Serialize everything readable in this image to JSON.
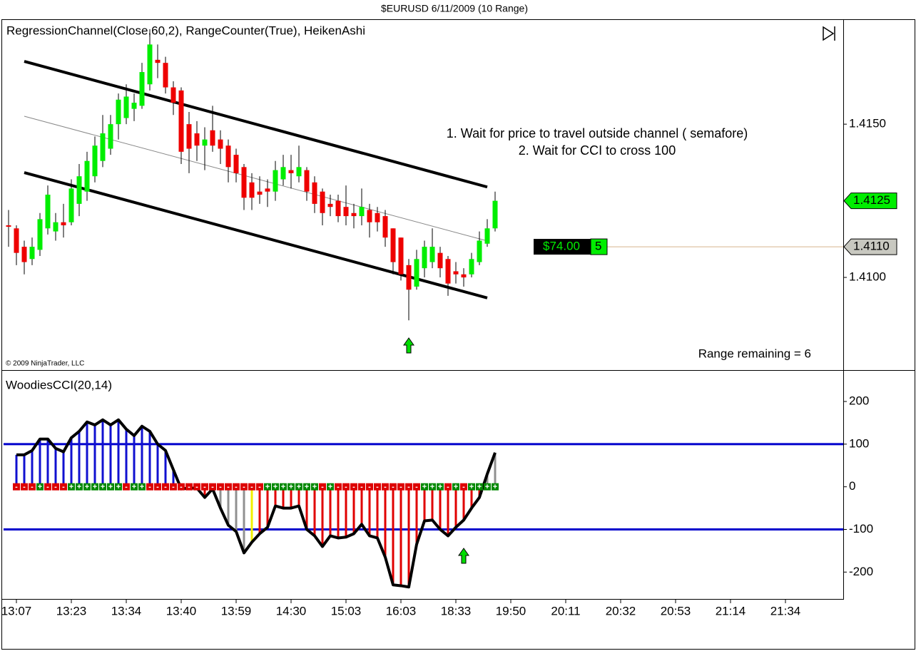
{
  "window_title": "$EURUSD  6/11/2009 (10 Range)",
  "chart_data": [
    {
      "type": "candlestick",
      "title": "RegressionChannel(Close,60,2), RangeCounter(True), HeikenAshi",
      "open": [
        1.4117,
        1.4116,
        1.411,
        1.4106,
        1.4109,
        1.4116,
        1.4115,
        1.4118,
        1.4118,
        1.4124,
        1.4128,
        1.4133,
        1.4138,
        1.4142,
        1.415,
        1.4152,
        1.4155,
        1.4156,
        1.4163,
        1.4171,
        1.417,
        1.4162,
        1.4161,
        1.415,
        1.4147,
        1.4143,
        1.4148,
        1.4145,
        1.4143,
        1.414,
        1.4136,
        1.4131,
        1.4128,
        1.4129,
        1.4128,
        1.4132,
        1.4135,
        1.4133,
        1.4135,
        1.4131,
        1.4128,
        1.4124,
        1.4125,
        1.4123,
        1.4121,
        1.412,
        1.4122,
        1.4121,
        1.412,
        1.4116,
        1.4113,
        1.4104,
        1.4097,
        1.4103,
        1.4105,
        1.4108,
        1.4106,
        1.4102,
        1.4101,
        1.4101,
        1.4105,
        1.4111,
        1.4116
      ],
      "high": [
        1.4122,
        1.4117,
        1.4112,
        1.4113,
        1.4121,
        1.413,
        1.4121,
        1.4124,
        1.4132,
        1.4137,
        1.4141,
        1.4146,
        1.4153,
        1.4153,
        1.416,
        1.4163,
        1.416,
        1.417,
        1.4181,
        1.4176,
        1.4172,
        1.4164,
        1.4162,
        1.4154,
        1.4151,
        1.4149,
        1.4156,
        1.4148,
        1.4145,
        1.4142,
        1.4137,
        1.4134,
        1.4133,
        1.4132,
        1.4138,
        1.414,
        1.414,
        1.4143,
        1.4136,
        1.4133,
        1.4129,
        1.4127,
        1.4127,
        1.413,
        1.4124,
        1.4129,
        1.4124,
        1.4123,
        1.4122,
        1.4116,
        1.4113,
        1.4106,
        1.4109,
        1.4112,
        1.4116,
        1.411,
        1.4107,
        1.4105,
        1.4103,
        1.4108,
        1.4115,
        1.4119,
        1.4128
      ],
      "low": [
        1.411,
        1.4104,
        1.4101,
        1.4104,
        1.4107,
        1.4114,
        1.4112,
        1.4113,
        1.4117,
        1.412,
        1.4125,
        1.4131,
        1.4136,
        1.414,
        1.4145,
        1.415,
        1.4151,
        1.4155,
        1.4161,
        1.4165,
        1.416,
        1.4153,
        1.4137,
        1.4134,
        1.4138,
        1.4135,
        1.4141,
        1.4137,
        1.4131,
        1.4131,
        1.4122,
        1.4122,
        1.4124,
        1.4123,
        1.4125,
        1.413,
        1.4129,
        1.4131,
        1.4125,
        1.4121,
        1.4117,
        1.412,
        1.4118,
        1.4117,
        1.4116,
        1.4117,
        1.4113,
        1.4115,
        1.411,
        1.4101,
        1.4099,
        1.4086,
        1.4096,
        1.41,
        1.4103,
        1.41,
        1.4094,
        1.4098,
        1.4097,
        1.41,
        1.4104,
        1.411,
        1.4115
      ],
      "close": [
        1.4117,
        1.4108,
        1.4105,
        1.411,
        1.4119,
        1.4127,
        1.4118,
        1.4117,
        1.4129,
        1.4133,
        1.4138,
        1.4143,
        1.4147,
        1.415,
        1.4158,
        1.4159,
        1.4157,
        1.4167,
        1.4176,
        1.417,
        1.4162,
        1.4157,
        1.4141,
        1.4142,
        1.4143,
        1.4145,
        1.4143,
        1.4142,
        1.4136,
        1.4134,
        1.4126,
        1.4126,
        1.4127,
        1.4128,
        1.4135,
        1.4136,
        1.4134,
        1.4136,
        1.4128,
        1.4124,
        1.4121,
        1.4123,
        1.412,
        1.412,
        1.412,
        1.4123,
        1.4118,
        1.4118,
        1.4113,
        1.4105,
        1.4101,
        1.4096,
        1.4106,
        1.411,
        1.411,
        1.4103,
        1.4098,
        1.4101,
        1.41,
        1.4106,
        1.4112,
        1.4116,
        1.4125
      ],
      "up_color": "#00ee00",
      "down_color": "#ee0000",
      "channel": {
        "upper": [
          1.41705,
          1.41295
        ],
        "middle": [
          1.41526,
          1.41119
        ],
        "lower": [
          1.41342,
          1.40933
        ]
      },
      "ylim": [
        1.407,
        1.4184
      ],
      "yticks": [
        {
          "value": 1.41,
          "label": "1.4100"
        },
        {
          "value": 1.415,
          "label": "1.4150"
        }
      ],
      "last_price": {
        "value": 1.4125,
        "label": "1.4125"
      },
      "position_price": {
        "value": 1.411,
        "label": "1.4110"
      },
      "pnl": "$74.00",
      "quantity": "5",
      "annotations": [
        "1. Wait for price to travel outside channel ( semafore)",
        "2. Wait for CCI to cross 100"
      ],
      "range_remaining": "Range remaining = 6",
      "copyright": "© 2009 NinjaTrader, LLC"
    },
    {
      "type": "cci",
      "title": "WoodiesCCI(20,14)",
      "values": [
        null,
        75,
        75,
        85,
        112,
        112,
        90,
        82,
        115,
        130,
        152,
        145,
        157,
        145,
        157,
        135,
        120,
        142,
        130,
        100,
        85,
        40,
        -5,
        -3,
        -3,
        -25,
        -5,
        -50,
        -90,
        -105,
        -155,
        -130,
        -110,
        -95,
        -45,
        -50,
        -50,
        -45,
        -100,
        -115,
        -140,
        -115,
        -120,
        -118,
        -110,
        -88,
        -115,
        -120,
        -165,
        -230,
        -232,
        -235,
        -135,
        -80,
        -78,
        -100,
        -115,
        -95,
        -78,
        -50,
        -25,
        30,
        80
      ],
      "bar_colors": [
        null,
        "#1010d0",
        "#1010d0",
        "#1010d0",
        "#1010d0",
        "#1010d0",
        "#1010d0",
        "#1010d0",
        "#1010d0",
        "#1010d0",
        "#1010d0",
        "#1010d0",
        "#1010d0",
        "#1010d0",
        "#1010d0",
        "#1010d0",
        "#1010d0",
        "#1010d0",
        "#1010d0",
        "#1010d0",
        "#1010d0",
        "#1010d0",
        "#e00000",
        "#e00000",
        "#e00000",
        "#e00000",
        "#e00000",
        "#909090",
        "#909090",
        "#909090",
        "#909090",
        "#f0f000",
        "#e00000",
        "#e00000",
        "#e00000",
        "#e00000",
        "#e00000",
        "#e00000",
        "#e00000",
        "#e00000",
        "#e00000",
        "#e00000",
        "#e00000",
        "#e00000",
        "#e00000",
        "#e00000",
        "#e00000",
        "#e00000",
        "#e00000",
        "#e00000",
        "#e00000",
        "#e00000",
        "#e00000",
        "#e00000",
        "#e00000",
        "#e00000",
        "#e00000",
        "#e00000",
        "#e00000",
        "#e00000",
        "#e00000",
        "#909090",
        "#909090"
      ],
      "zero_line_signs": [
        null,
        "-",
        "-",
        "-",
        "+",
        "-",
        "-",
        "-",
        "+",
        "+",
        "+",
        "+",
        "+",
        "+",
        "+",
        "-",
        "+",
        "+",
        "-",
        "-",
        "-",
        "-",
        "-",
        "-",
        "-",
        "-",
        "-",
        "-",
        "-",
        "-",
        "-",
        "-",
        "-",
        "+",
        "+",
        "+",
        "+",
        "+",
        "+",
        "+",
        "-",
        "+",
        "-",
        "-",
        "-",
        "-",
        "-",
        "-",
        "-",
        "-",
        "-",
        "-",
        "-",
        "+",
        "+",
        "+",
        "-",
        "+",
        "-",
        "+",
        "+",
        "+",
        "+"
      ],
      "levels": [
        100,
        -100
      ],
      "level_color": "#0000cc",
      "ylim": [
        -263,
        272
      ],
      "yticks": [
        -200,
        -100,
        0,
        100,
        200
      ],
      "x_labels": [
        "13:07",
        "13:23",
        "13:34",
        "13:40",
        "13:59",
        "14:30",
        "15:03",
        "16:03",
        "18:33",
        "19:50",
        "20:11",
        "20:32",
        "20:53",
        "21:14",
        "21:34"
      ]
    }
  ]
}
